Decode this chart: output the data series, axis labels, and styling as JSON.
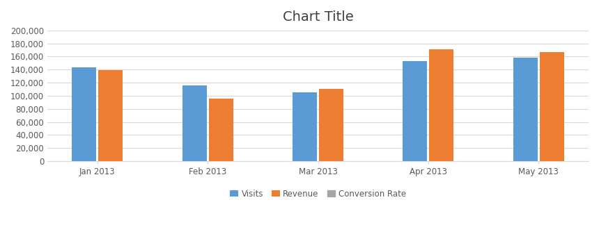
{
  "title": "Chart Title",
  "categories": [
    "Jan 2013",
    "Feb 2013",
    "Mar 2013",
    "Apr 2013",
    "May 2013"
  ],
  "series": [
    {
      "name": "Visits",
      "values": [
        143000,
        116000,
        105000,
        153000,
        158000
      ],
      "color": "#5B9BD5"
    },
    {
      "name": "Revenue",
      "values": [
        139000,
        96000,
        111000,
        171000,
        167000
      ],
      "color": "#ED7D31"
    },
    {
      "name": "Conversion Rate",
      "values": [
        0,
        0,
        0,
        0,
        0
      ],
      "color": "#A5A5A5"
    }
  ],
  "ylim": [
    0,
    200000
  ],
  "ytick_step": 20000,
  "background_color": "#FFFFFF",
  "plot_background_color": "#FFFFFF",
  "grid_color": "#D9D9D9",
  "border_color": "#D9D9D9",
  "title_fontsize": 14,
  "tick_fontsize": 8.5,
  "legend_fontsize": 8.5,
  "bar_width": 0.22,
  "bar_gap": 0.02,
  "figsize": [
    8.6,
    3.37
  ],
  "dpi": 100
}
